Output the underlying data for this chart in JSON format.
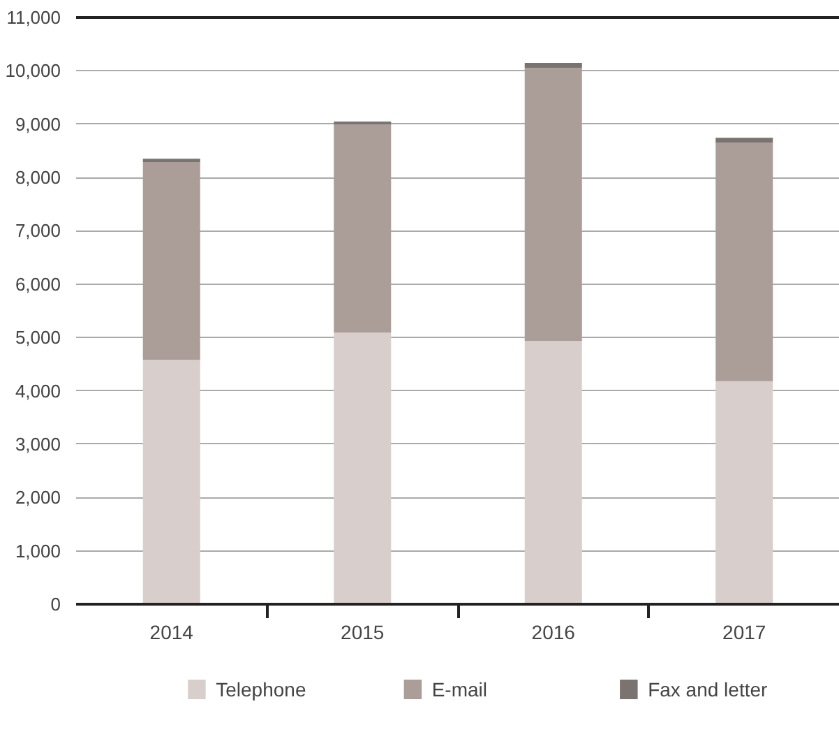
{
  "chart_data": {
    "type": "bar",
    "stacked": true,
    "categories": [
      "2014",
      "2015",
      "2016",
      "2017"
    ],
    "series": [
      {
        "name": "Telephone",
        "color": "#d8cfcc",
        "values": [
          4580,
          5090,
          4935,
          4180
        ]
      },
      {
        "name": "E-mail",
        "color": "#ab9e99",
        "values": [
          3710,
          3900,
          5115,
          4470
        ]
      },
      {
        "name": "Fax and letter",
        "color": "#7a7370",
        "values": [
          60,
          60,
          100,
          95
        ]
      }
    ],
    "ylim": [
      0,
      11000
    ],
    "yticks": [
      {
        "value": 0,
        "label": "0"
      },
      {
        "value": 1000,
        "label": "1,000"
      },
      {
        "value": 2000,
        "label": "2,000"
      },
      {
        "value": 3000,
        "label": "3,000"
      },
      {
        "value": 4000,
        "label": "4,000"
      },
      {
        "value": 5000,
        "label": "5,000"
      },
      {
        "value": 6000,
        "label": "6,000"
      },
      {
        "value": 7000,
        "label": "7,000"
      },
      {
        "value": 8000,
        "label": "8,000"
      },
      {
        "value": 9000,
        "label": "9,000"
      },
      {
        "value": 10000,
        "label": "10,000"
      },
      {
        "value": 11000,
        "label": "11,000"
      }
    ],
    "grid": "y",
    "legend": "bottom"
  }
}
